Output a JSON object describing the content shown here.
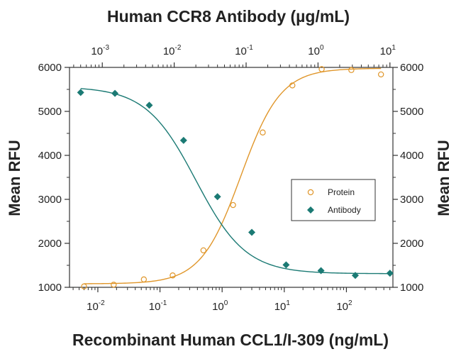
{
  "chart_data": {
    "type": "scatter",
    "title_top": "Human CCR8 Antibody (µg/mL)",
    "xlabel_bottom": "Recombinant Human CCL1/I-309 (ng/mL)",
    "ylabel_left": "Mean RFU",
    "ylabel_right": "Mean RFU",
    "ylim": [
      1000,
      6000
    ],
    "y_ticks": [
      "1000",
      "2000",
      "3000",
      "4000",
      "5000",
      "6000"
    ],
    "x_bottom": {
      "scale": "log",
      "range": [
        0.0035,
        560
      ],
      "tick_exponents": [
        -2,
        -1,
        0,
        1,
        2
      ],
      "tick_base": "10"
    },
    "x_top": {
      "scale": "log",
      "range": [
        0.00035,
        11
      ],
      "tick_exponents": [
        -3,
        -2,
        -1,
        0,
        1
      ],
      "tick_base": "10"
    },
    "legend_position": "center-right",
    "series": [
      {
        "name": "Protein",
        "marker": "open-circle",
        "color": "#E0962A",
        "x_axis": "bottom",
        "x": [
          0.006,
          0.018,
          0.055,
          0.16,
          0.5,
          1.5,
          4.5,
          13.5,
          40,
          120,
          360
        ],
        "y": [
          1020,
          1060,
          1180,
          1270,
          1840,
          2870,
          4520,
          5590,
          5960,
          5940,
          5840
        ],
        "fit": {
          "bottom": 1080,
          "top": 5980,
          "ec50": 2.0,
          "hill": 1.35
        }
      },
      {
        "name": "Antibody",
        "marker": "filled-diamond",
        "color": "#1B7A74",
        "x_axis": "top",
        "x": [
          0.0005,
          0.0015,
          0.0045,
          0.0135,
          0.04,
          0.12,
          0.36,
          1.1,
          3.3,
          10
        ],
        "y": [
          5430,
          5410,
          5140,
          4340,
          3060,
          2250,
          1510,
          1380,
          1270,
          1320
        ],
        "fit": {
          "bottom": 1310,
          "top": 5560,
          "ec50": 0.02,
          "hill": 1.25
        }
      }
    ]
  }
}
